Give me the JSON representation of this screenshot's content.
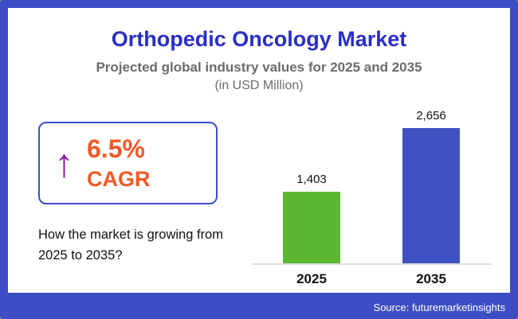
{
  "theme": {
    "border_color": "#3d4ec5",
    "title_color": "#2a2ec4",
    "subtitle_color": "#6b6b6b",
    "cagr_color": "#f05a28",
    "arrow_color": "#8e24aa"
  },
  "header": {
    "title": "Orthopedic Oncology Market",
    "subtitle": "Projected global industry values for 2025 and 2035",
    "unit": "(in USD Million)"
  },
  "cagr": {
    "arrow_icon": "↑",
    "value": "6.5%",
    "label": "CAGR"
  },
  "caption": "How the market is growing from 2025 to 2035?",
  "chart_data": {
    "type": "bar",
    "title": "Orthopedic Oncology Market",
    "subtitle": "Projected global industry values for 2025 and 2035",
    "unit": "(in USD Million)",
    "categories": [
      "2025",
      "2035"
    ],
    "values": [
      1403,
      2656
    ],
    "value_labels": [
      "1,403",
      "2,656"
    ],
    "colors": [
      "#5cb832",
      "#3f51c1"
    ],
    "ylim": [
      0,
      2800
    ],
    "grid": false,
    "legend": false
  },
  "footer": {
    "source": "Source: futuremarketinsights"
  }
}
